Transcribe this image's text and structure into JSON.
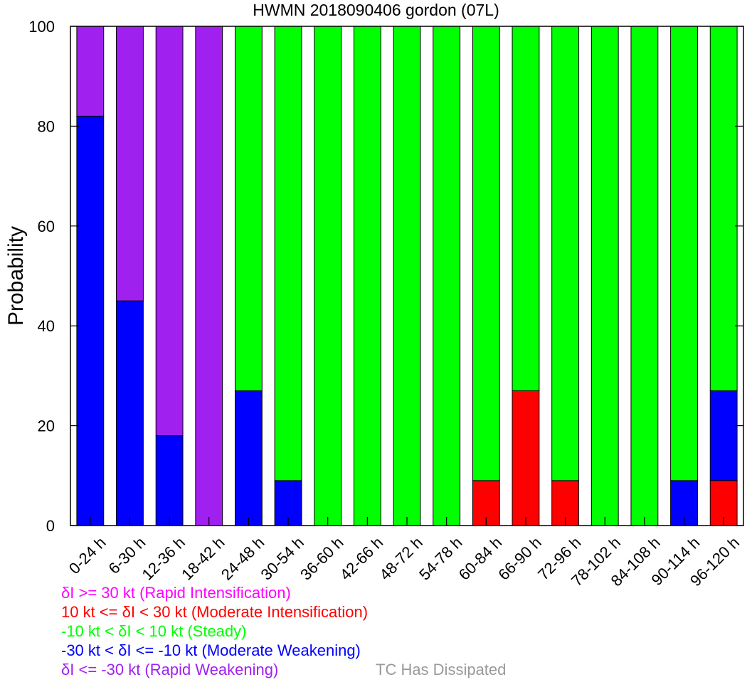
{
  "chart_data": {
    "type": "bar",
    "stacked": true,
    "title": "HWMN 2018090406 gordon (07L)",
    "ylabel": "Probability",
    "xlabel": "",
    "ylim": [
      0,
      100
    ],
    "yticks": [
      0,
      20,
      40,
      60,
      80,
      100
    ],
    "grid": false,
    "categories": [
      "0-24 h",
      "6-30 h",
      "12-36 h",
      "18-42 h",
      "24-48 h",
      "30-54 h",
      "36-60 h",
      "42-66 h",
      "48-72 h",
      "54-78 h",
      "60-84 h",
      "66-90 h",
      "72-96 h",
      "78-102 h",
      "84-108 h",
      "90-114 h",
      "96-120 h"
    ],
    "series": [
      {
        "name": "δI >= 30 kt (Rapid Intensification)",
        "color": "#ff00ff",
        "values": [
          0,
          0,
          0,
          0,
          0,
          0,
          0,
          0,
          0,
          0,
          0,
          0,
          0,
          0,
          0,
          0,
          0
        ]
      },
      {
        "name": "10 kt <= δI < 30 kt (Moderate Intensification)",
        "color": "#ff0000",
        "values": [
          0,
          0,
          0,
          0,
          0,
          0,
          0,
          0,
          0,
          0,
          9,
          27,
          9,
          0,
          0,
          0,
          9
        ]
      },
      {
        "name": "-10 kt < δI < 10 kt (Steady)",
        "color": "#00ff00",
        "values": [
          0,
          0,
          0,
          0,
          73,
          91,
          100,
          100,
          100,
          100,
          91,
          73,
          91,
          100,
          100,
          91,
          73
        ]
      },
      {
        "name": "-30 kt < δI <= -10 kt (Moderate Weakening)",
        "color": "#0000ff",
        "values": [
          82,
          45,
          18,
          0,
          27,
          9,
          0,
          0,
          0,
          0,
          0,
          0,
          0,
          0,
          0,
          9,
          18
        ]
      },
      {
        "name": "δI <= -30 kt (Rapid Weakening)",
        "color": "#a020f0",
        "values": [
          18,
          55,
          82,
          100,
          0,
          0,
          0,
          0,
          0,
          0,
          0,
          0,
          0,
          0,
          0,
          0,
          0
        ]
      }
    ],
    "stack_order": [
      "10 kt <= δI < 30 kt (Moderate Intensification)",
      "-30 kt < δI <= -10 kt (Moderate Weakening)",
      "-10 kt < δI < 10 kt (Steady)",
      "δI <= -30 kt (Rapid Weakening)",
      "δI >= 30 kt (Rapid Intensification)"
    ],
    "legend": [
      {
        "label": "δI >= 30 kt (Rapid Intensification)",
        "color": "#ff00ff"
      },
      {
        "label": "10 kt <= δI < 30 kt (Moderate Intensification)",
        "color": "#ff0000"
      },
      {
        "label": "-10 kt < δI < 10 kt (Steady)",
        "color": "#00ff00"
      },
      {
        "label": "-30 kt < δI <= -10 kt (Moderate Weakening)",
        "color": "#0000ff"
      },
      {
        "label": "δI <= -30 kt (Rapid Weakening)",
        "color": "#a020f0"
      }
    ],
    "extra_legend": {
      "label": "TC Has Dissipated",
      "color": "#999999"
    },
    "legend_position": "bottom-left"
  }
}
